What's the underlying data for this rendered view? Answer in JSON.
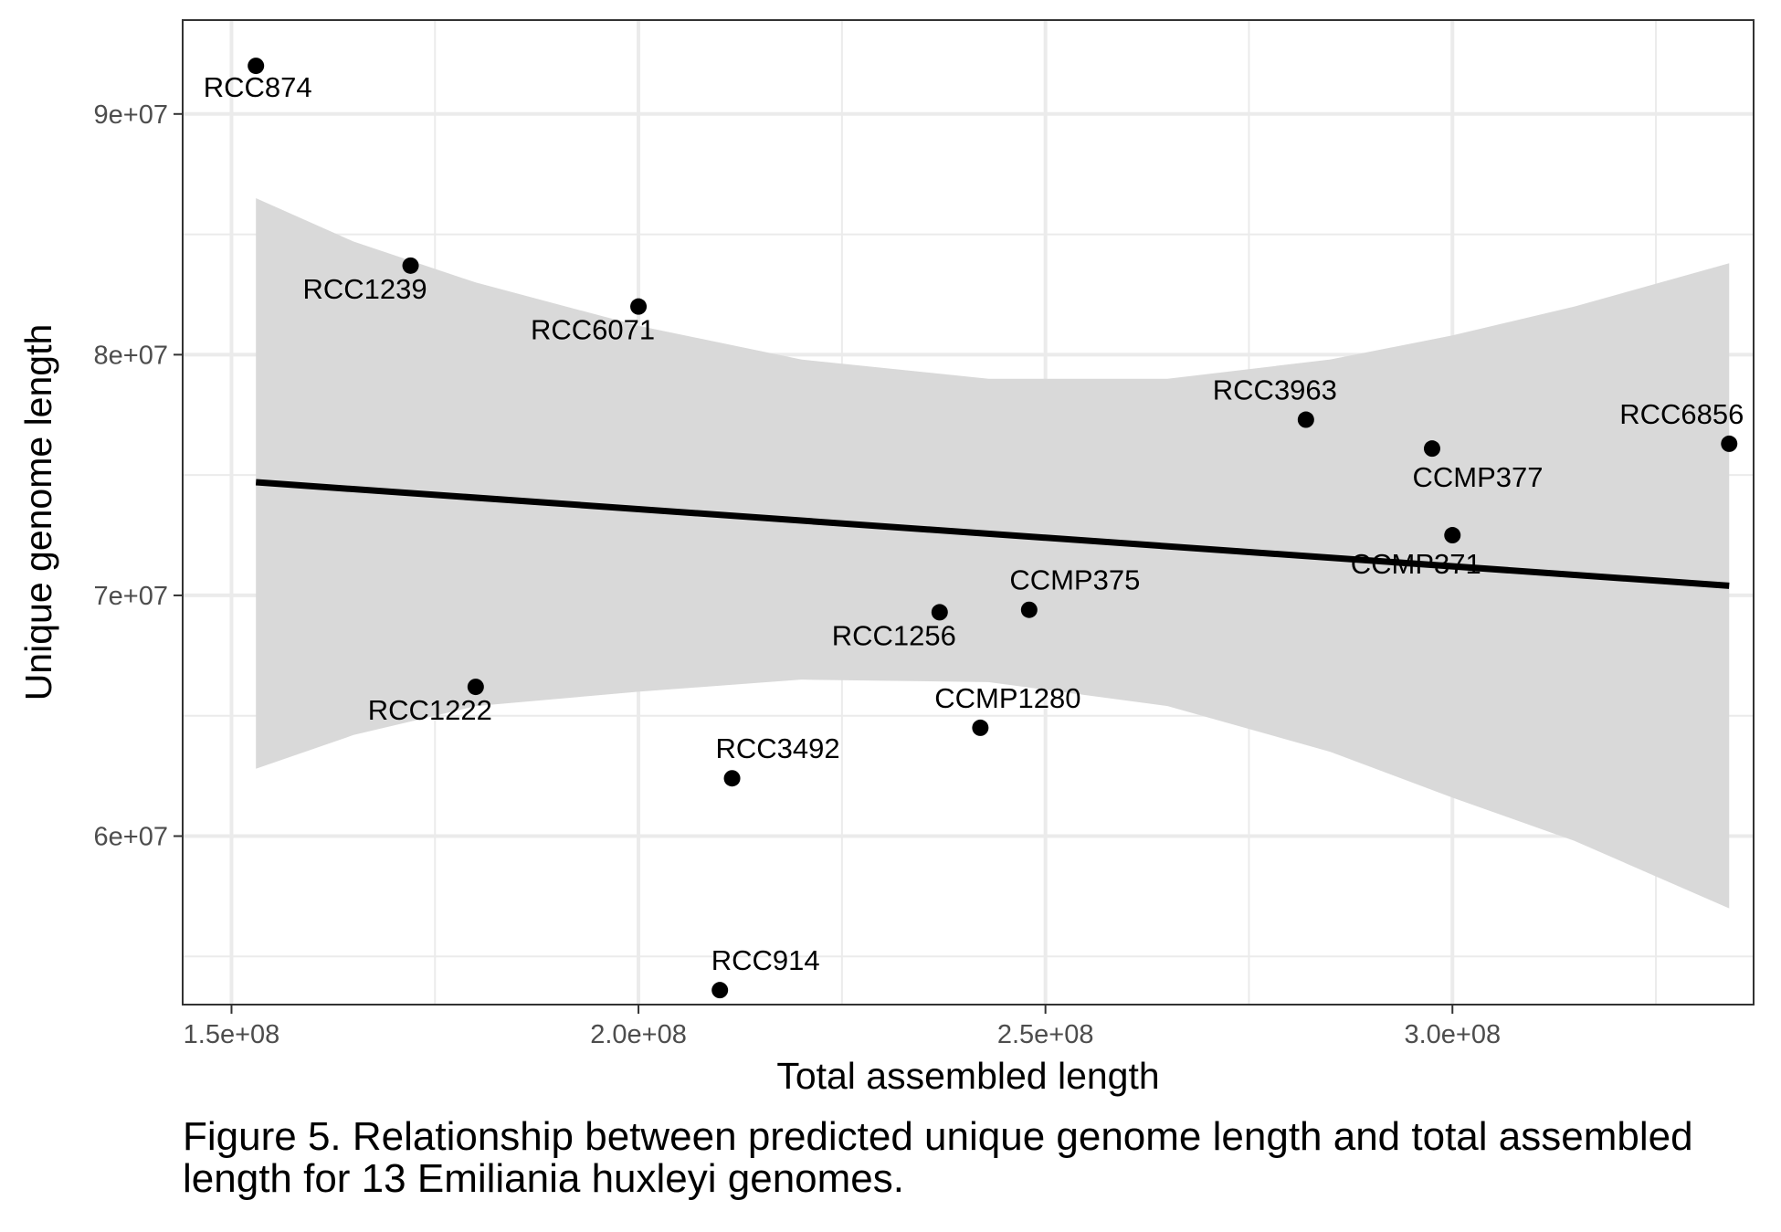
{
  "chart_data": {
    "type": "scatter",
    "title": "",
    "xlabel": "Total assembled length",
    "ylabel": "Unique genome length",
    "xlim": [
      144000000,
      337000000
    ],
    "ylim": [
      53000000,
      93900000
    ],
    "x_ticks": [
      150000000,
      200000000,
      250000000,
      300000000
    ],
    "x_tick_labels": [
      "1.5e+08",
      "2.0e+08",
      "2.5e+08",
      "3.0e+08"
    ],
    "y_ticks": [
      60000000,
      70000000,
      80000000,
      90000000
    ],
    "y_tick_labels": [
      "6e+07",
      "7e+07",
      "8e+07",
      "9e+07"
    ],
    "grid": true,
    "points": [
      {
        "label": "RCC874",
        "x": 153000000,
        "y": 92000000
      },
      {
        "label": "RCC1239",
        "x": 172000000,
        "y": 83700000
      },
      {
        "label": "RCC6071",
        "x": 200000000,
        "y": 82000000
      },
      {
        "label": "RCC1222",
        "x": 180000000,
        "y": 66200000
      },
      {
        "label": "RCC3492",
        "x": 211500000,
        "y": 62400000
      },
      {
        "label": "RCC914",
        "x": 210000000,
        "y": 53600000
      },
      {
        "label": "RCC1256",
        "x": 237000000,
        "y": 69300000
      },
      {
        "label": "CCMP375",
        "x": 248000000,
        "y": 69400000
      },
      {
        "label": "CCMP1280",
        "x": 242000000,
        "y": 64500000
      },
      {
        "label": "RCC3963",
        "x": 282000000,
        "y": 77300000
      },
      {
        "label": "CCMP377",
        "x": 297500000,
        "y": 76100000
      },
      {
        "label": "CCMP371",
        "x": 300000000,
        "y": 72500000
      },
      {
        "label": "RCC6856",
        "x": 334000000,
        "y": 76300000
      }
    ],
    "fit_line": {
      "x": [
        153000000,
        334000000
      ],
      "y": [
        74700000,
        70400000
      ]
    },
    "confidence_band": {
      "x": [
        153000000,
        165000000,
        180000000,
        200000000,
        220000000,
        243000000,
        265000000,
        285000000,
        300000000,
        315000000,
        334000000
      ],
      "upper": [
        86500000,
        84700000,
        83000000,
        81200000,
        79800000,
        79000000,
        79000000,
        79800000,
        80800000,
        82000000,
        83800000
      ],
      "lower": [
        62800000,
        64200000,
        65400000,
        66000000,
        66500000,
        66400000,
        65400000,
        63500000,
        61600000,
        59800000,
        57000000
      ]
    },
    "colors": {
      "point": "#000000",
      "line": "#000000",
      "band": "#d9d9d9",
      "grid": "#ebebeb",
      "panel_border": "#333333"
    }
  },
  "caption": "Figure 5. Relationship between predicted unique genome length and total assembled length for 13 Emiliania huxleyi genomes."
}
